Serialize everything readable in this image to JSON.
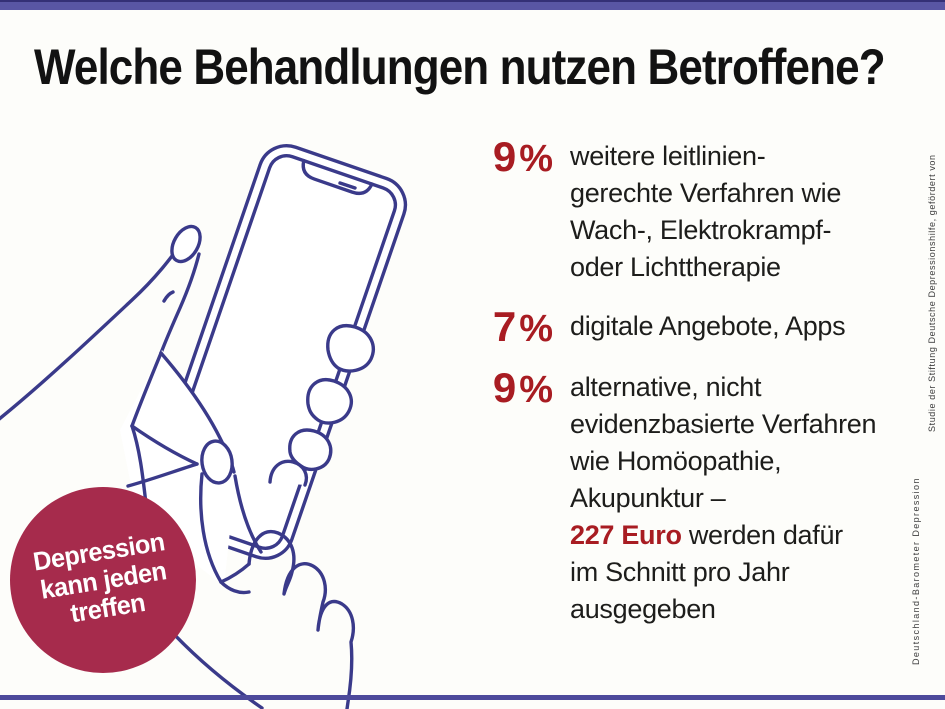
{
  "colors": {
    "background": "#fdfdfa",
    "line_art_indigo": "#3a3a8a",
    "stat_red": "#a81c22",
    "badge_red": "#a62b4c",
    "top_bar_purple": "#5956a4",
    "bottom_line_purple": "#4d4a9b"
  },
  "header": {
    "title": "Welche Behandlungen nutzen Betroffene?"
  },
  "badge": {
    "lines": [
      "Depression",
      "kann jeden",
      "treffen"
    ]
  },
  "stats": [
    {
      "value": "9",
      "unit": "%",
      "lines": [
        [
          {
            "t": "weitere leitlinien-"
          }
        ],
        [
          {
            "t": "gerechte Verfahren wie"
          }
        ],
        [
          {
            "t": "Wach-, Elektrokrampf-"
          }
        ],
        [
          {
            "t": "oder Lichttherapie"
          }
        ]
      ]
    },
    {
      "value": "7",
      "unit": "%",
      "lines": [
        [
          {
            "t": "digitale Angebote, Apps"
          }
        ]
      ]
    },
    {
      "value": "9",
      "unit": "%",
      "lines": [
        [
          {
            "t": "alternative, nicht"
          }
        ],
        [
          {
            "t": "evidenzbasierte Verfahren"
          }
        ],
        [
          {
            "t": "wie Homöopathie,"
          }
        ],
        [
          {
            "t": "Akupunktur –"
          }
        ],
        [
          {
            "t": "227 Euro",
            "red": true
          },
          {
            "t": " werden dafür"
          }
        ],
        [
          {
            "t": "im Schnitt pro Jahr"
          }
        ],
        [
          {
            "t": "ausgegeben"
          }
        ]
      ]
    }
  ],
  "source": {
    "line1": "Deutschland-Barometer Depression",
    "line2": "Studie der Stiftung Deutsche Depressionshilfe, gefördert von"
  },
  "illustration": {
    "description": "continuous line drawing of a hand holding a smartphone"
  }
}
